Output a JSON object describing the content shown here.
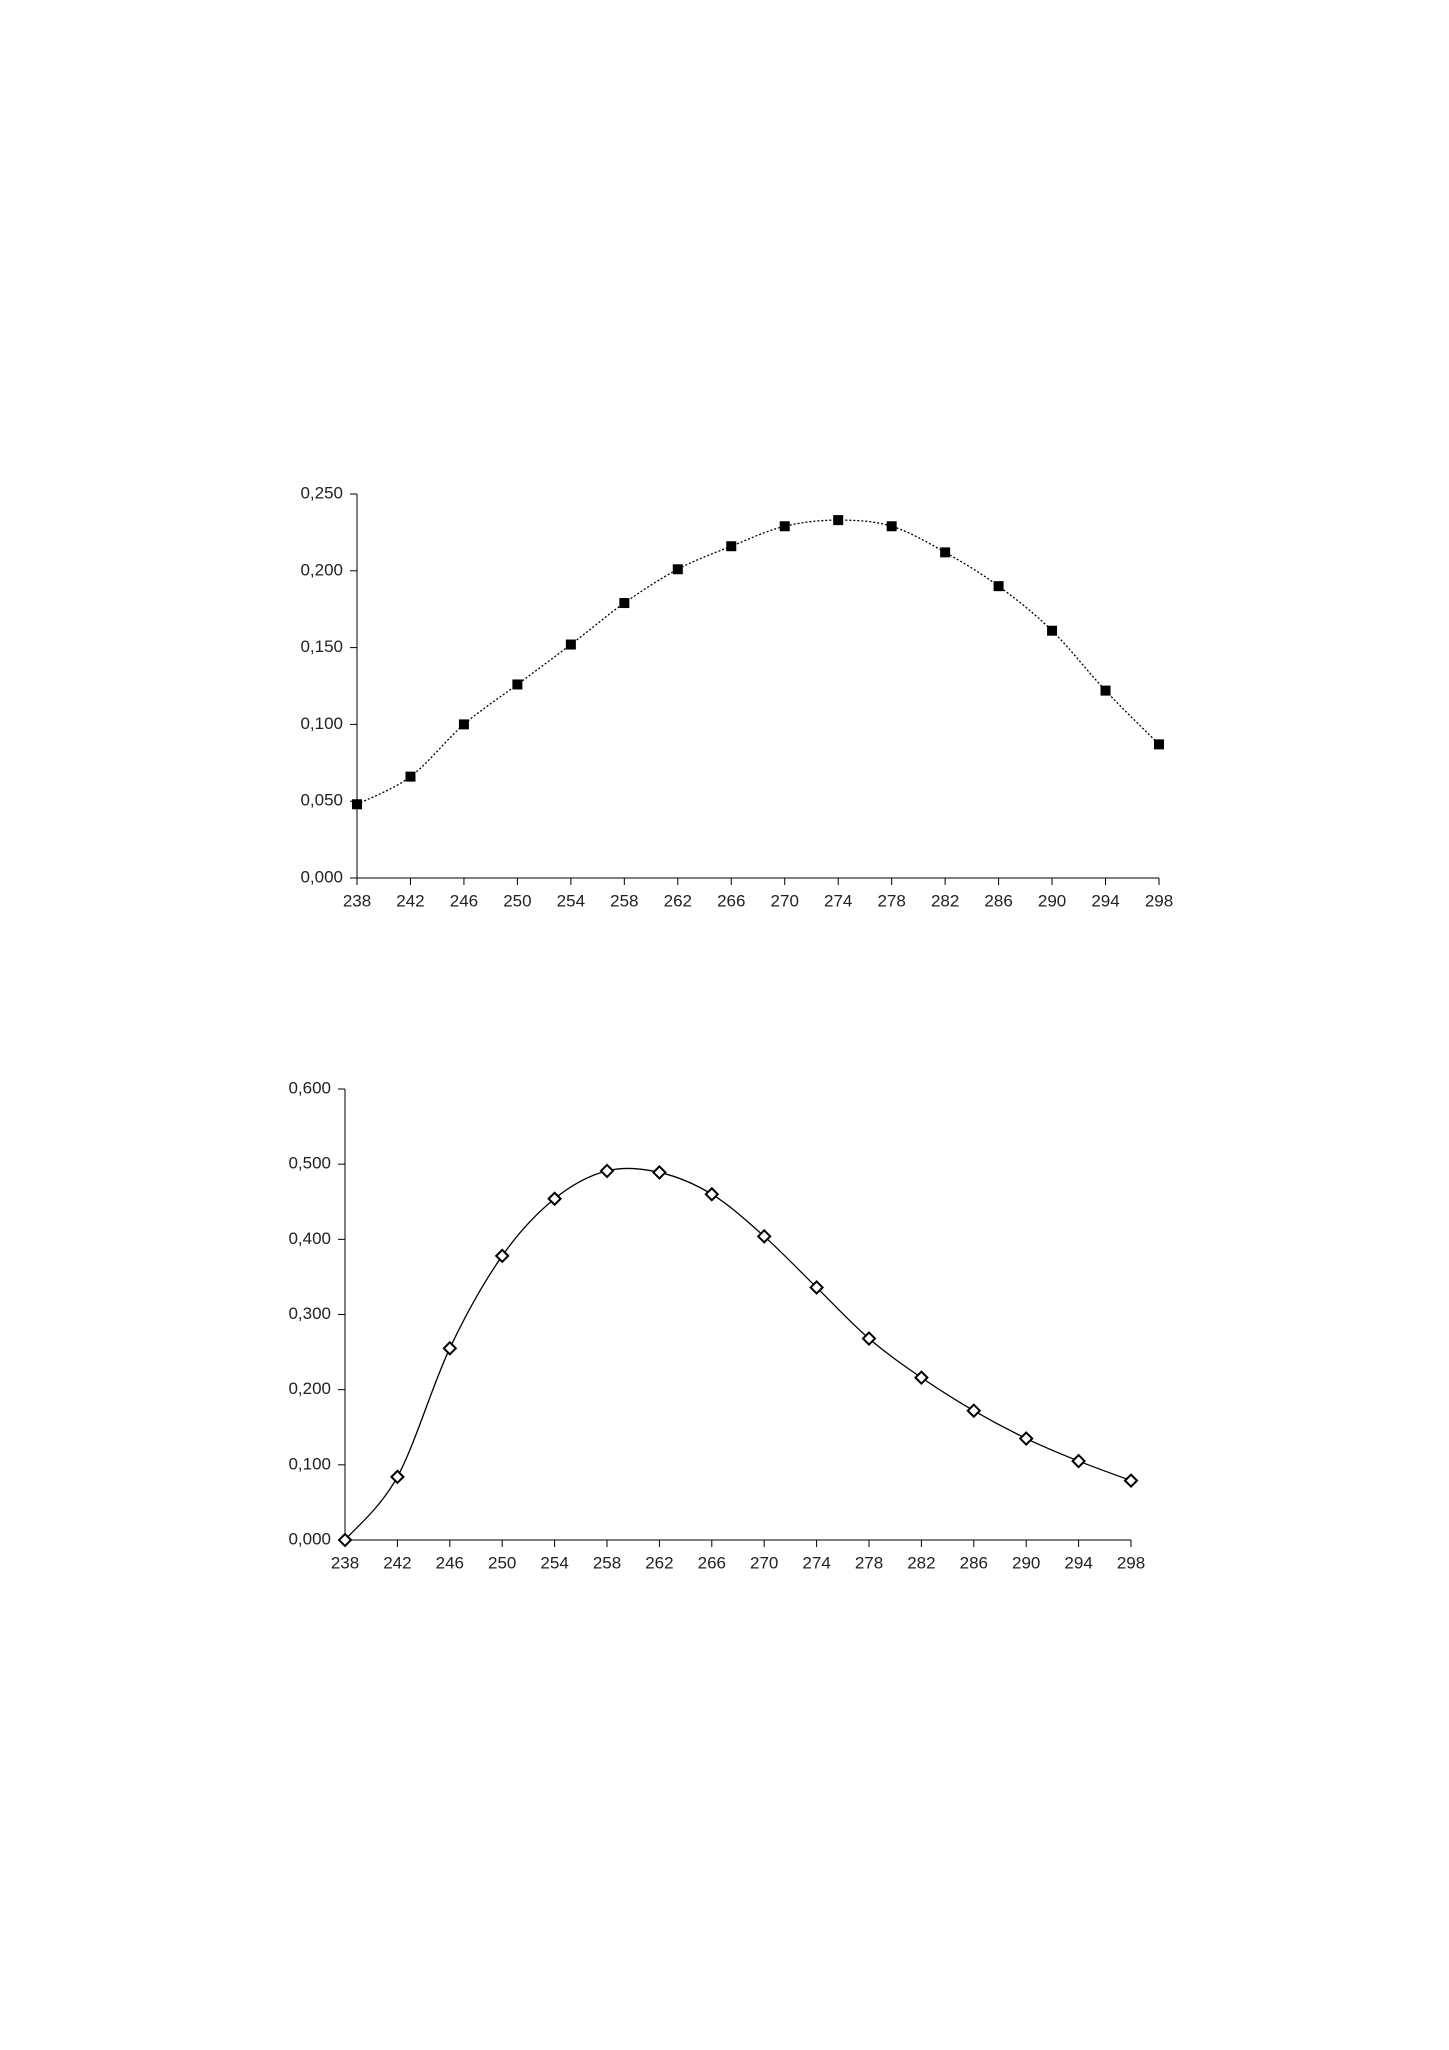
{
  "chart_data": [
    {
      "type": "line",
      "marker": "square",
      "line_style": "dotted",
      "color": "#000000",
      "x": [
        238,
        242,
        246,
        250,
        254,
        258,
        262,
        266,
        270,
        274,
        278,
        282,
        286,
        290,
        294,
        298
      ],
      "values": [
        0.048,
        0.066,
        0.1,
        0.126,
        0.152,
        0.179,
        0.201,
        0.216,
        0.229,
        0.233,
        0.229,
        0.212,
        0.19,
        0.161,
        0.122,
        0.087
      ],
      "xlim": [
        238,
        298
      ],
      "xticks": [
        238,
        242,
        246,
        250,
        254,
        258,
        262,
        266,
        270,
        274,
        278,
        282,
        286,
        290,
        294,
        298
      ],
      "ylim": [
        0,
        0.25
      ],
      "yticks": [
        {
          "value": 0,
          "label": "0,000"
        },
        {
          "value": 0.05,
          "label": "0,050"
        },
        {
          "value": 0.1,
          "label": "0,100"
        },
        {
          "value": 0.15,
          "label": "0,150"
        },
        {
          "value": 0.2,
          "label": "0,200"
        },
        {
          "value": 0.25,
          "label": "0,250"
        }
      ]
    },
    {
      "type": "line",
      "marker": "diamond",
      "line_style": "solid",
      "color": "#000000",
      "x": [
        238,
        242,
        246,
        250,
        254,
        258,
        262,
        266,
        270,
        274,
        278,
        282,
        286,
        290,
        294,
        298
      ],
      "values": [
        0.0,
        0.084,
        0.255,
        0.378,
        0.454,
        0.491,
        0.489,
        0.46,
        0.404,
        0.336,
        0.268,
        0.216,
        0.172,
        0.135,
        0.105,
        0.079
      ],
      "xlim": [
        238,
        298
      ],
      "xticks": [
        238,
        242,
        246,
        250,
        254,
        258,
        262,
        266,
        270,
        274,
        278,
        282,
        286,
        290,
        294,
        298
      ],
      "ylim": [
        0,
        0.6
      ],
      "yticks": [
        {
          "value": 0,
          "label": "0,000"
        },
        {
          "value": 0.1,
          "label": "0,100"
        },
        {
          "value": 0.2,
          "label": "0,200"
        },
        {
          "value": 0.3,
          "label": "0,300"
        },
        {
          "value": 0.4,
          "label": "0,400"
        },
        {
          "value": 0.5,
          "label": "0,500"
        },
        {
          "value": 0.6,
          "label": "0,600"
        }
      ]
    }
  ]
}
